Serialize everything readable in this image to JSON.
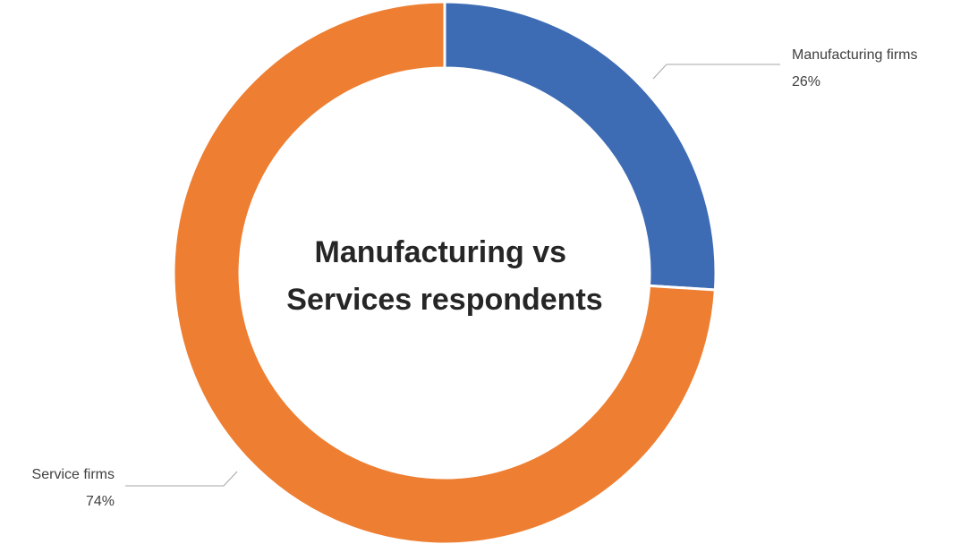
{
  "chart_data": {
    "type": "pie",
    "variant": "donut",
    "title": "Manufacturing vs Services respondents",
    "title_lines": [
      "Manufacturing vs",
      "Services respondents"
    ],
    "slices": [
      {
        "label": "Manufacturing firms",
        "value": 26,
        "display": "26%",
        "color": "#3d6cb5"
      },
      {
        "label": "Service firms",
        "value": 74,
        "display": "74%",
        "color": "#ee7e31"
      }
    ],
    "legend": "none",
    "data_labels": "outside with leader lines"
  }
}
